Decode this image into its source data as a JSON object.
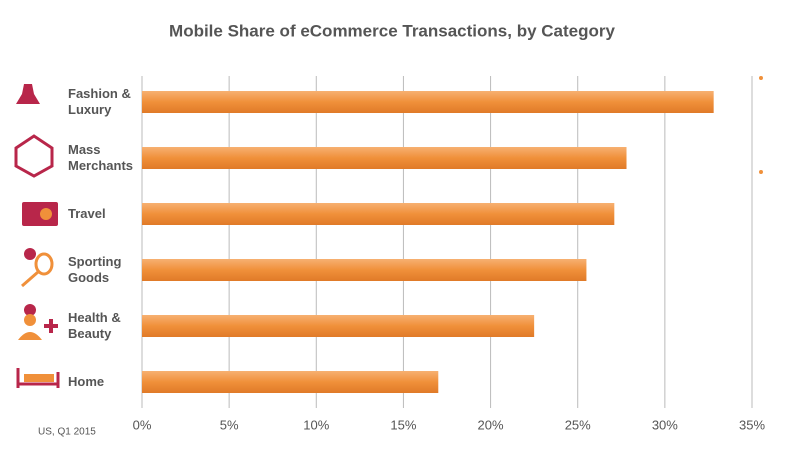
{
  "chart_data": {
    "type": "bar",
    "orientation": "horizontal",
    "title": "Mobile Share of eCommerce Transactions, by Category",
    "note": "US, Q1 2015",
    "categories": [
      "Fashion & Luxury",
      "Mass Merchants",
      "Travel",
      "Sporting Goods",
      "Health & Beauty",
      "Home"
    ],
    "values": [
      32.8,
      27.8,
      27.1,
      25.5,
      22.5,
      17.0
    ],
    "color": "#f0903a",
    "xlim": [
      0,
      35
    ],
    "xticks": [
      {
        "value": 0,
        "label": "0%"
      },
      {
        "value": 5,
        "label": "5%"
      },
      {
        "value": 10,
        "label": "10%"
      },
      {
        "value": 15,
        "label": "15%"
      },
      {
        "value": 20,
        "label": "20%"
      },
      {
        "value": 25,
        "label": "25%"
      },
      {
        "value": 30,
        "label": "30%"
      },
      {
        "value": 35,
        "label": "35%"
      }
    ],
    "grid": true
  }
}
